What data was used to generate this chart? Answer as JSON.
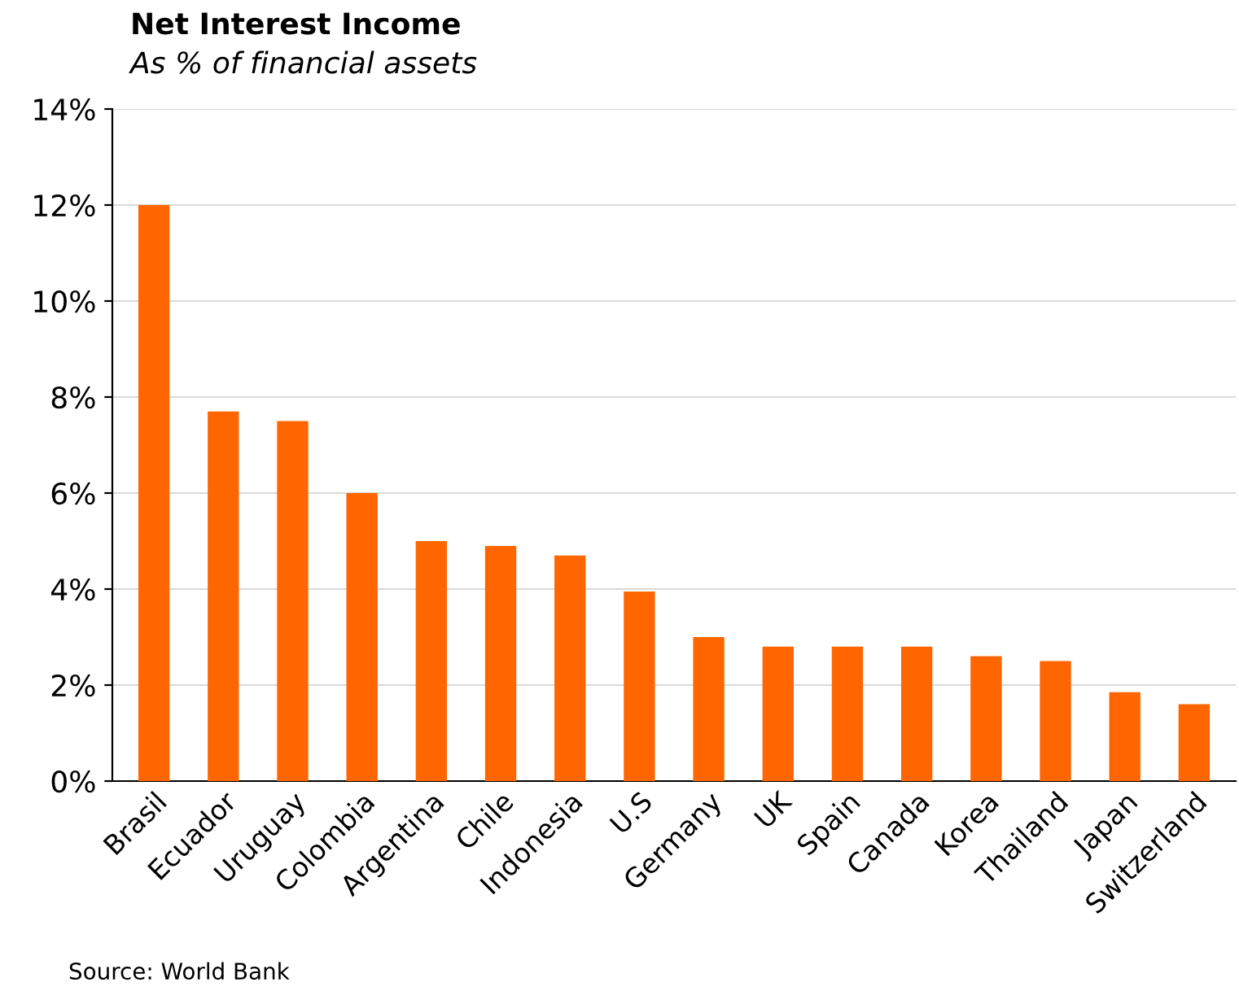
{
  "chart_data": {
    "type": "bar",
    "title": "Net Interest Income",
    "subtitle": "As % of financial assets",
    "categories": [
      "Brasil",
      "Ecuador",
      "Uruguay",
      "Colombia",
      "Argentina",
      "Chile",
      "Indonesia",
      "U.S",
      "Germany",
      "UK",
      "Spain",
      "Canada",
      "Korea",
      "Thailand",
      "Japan",
      "Switzerland"
    ],
    "values": [
      12.0,
      7.7,
      7.5,
      6.0,
      5.0,
      4.9,
      4.7,
      3.95,
      3.0,
      2.8,
      2.8,
      2.8,
      2.6,
      2.5,
      1.85,
      1.6
    ],
    "color": "#ff6600",
    "ylim": [
      0,
      14
    ],
    "yticks": [
      {
        "value": 0,
        "label": "0%"
      },
      {
        "value": 2,
        "label": "2%"
      },
      {
        "value": 4,
        "label": "4%"
      },
      {
        "value": 6,
        "label": "6%"
      },
      {
        "value": 8,
        "label": "8%"
      },
      {
        "value": 10,
        "label": "10%"
      },
      {
        "value": 12,
        "label": "12%"
      },
      {
        "value": 14,
        "label": "14%"
      }
    ],
    "grid": "y",
    "annotations": [
      "Source: World Bank"
    ]
  }
}
